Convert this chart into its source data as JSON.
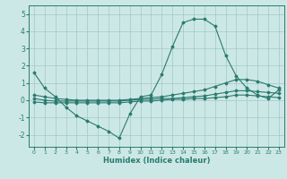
{
  "xlabel": "Humidex (Indice chaleur)",
  "ylabel": "",
  "bg_color": "#cce8e6",
  "grid_color": "#a0c8c6",
  "line_color": "#2a7a6f",
  "xlim": [
    -0.5,
    23.5
  ],
  "ylim": [
    -2.7,
    5.5
  ],
  "xticks": [
    0,
    1,
    2,
    3,
    4,
    5,
    6,
    7,
    8,
    9,
    10,
    11,
    12,
    13,
    14,
    15,
    16,
    17,
    18,
    19,
    20,
    21,
    22,
    23
  ],
  "yticks": [
    -2,
    -1,
    0,
    1,
    2,
    3,
    4,
    5
  ],
  "series": [
    {
      "x": [
        0,
        1,
        2,
        3,
        4,
        5,
        6,
        7,
        8,
        9,
        10,
        11,
        12,
        13,
        14,
        15,
        16,
        17,
        18,
        19,
        20,
        21,
        22,
        23
      ],
      "y": [
        1.6,
        0.7,
        0.2,
        -0.4,
        -0.9,
        -1.2,
        -1.5,
        -1.8,
        -2.2,
        -0.8,
        0.2,
        0.3,
        1.5,
        3.1,
        4.5,
        4.7,
        4.7,
        4.3,
        2.6,
        1.4,
        0.7,
        0.3,
        0.1,
        0.6
      ]
    },
    {
      "x": [
        0,
        1,
        2,
        3,
        4,
        5,
        6,
        7,
        8,
        9,
        10,
        11,
        12,
        13,
        14,
        15,
        16,
        17,
        18,
        19,
        20,
        21,
        22,
        23
      ],
      "y": [
        0.3,
        0.2,
        0.1,
        0.05,
        0.0,
        0.0,
        0.0,
        0.0,
        0.0,
        0.05,
        0.1,
        0.15,
        0.2,
        0.3,
        0.4,
        0.5,
        0.6,
        0.8,
        1.0,
        1.2,
        1.2,
        1.1,
        0.9,
        0.7
      ]
    },
    {
      "x": [
        0,
        1,
        2,
        3,
        4,
        5,
        6,
        7,
        8,
        9,
        10,
        11,
        12,
        13,
        14,
        15,
        16,
        17,
        18,
        19,
        20,
        21,
        22,
        23
      ],
      "y": [
        0.1,
        0.0,
        -0.05,
        -0.05,
        -0.05,
        -0.05,
        -0.05,
        -0.05,
        -0.05,
        0.0,
        0.05,
        0.05,
        0.1,
        0.1,
        0.15,
        0.2,
        0.25,
        0.35,
        0.45,
        0.55,
        0.55,
        0.5,
        0.45,
        0.4
      ]
    },
    {
      "x": [
        0,
        1,
        2,
        3,
        4,
        5,
        6,
        7,
        8,
        9,
        10,
        11,
        12,
        13,
        14,
        15,
        16,
        17,
        18,
        19,
        20,
        21,
        22,
        23
      ],
      "y": [
        -0.1,
        -0.15,
        -0.15,
        -0.15,
        -0.15,
        -0.15,
        -0.15,
        -0.15,
        -0.15,
        -0.1,
        -0.05,
        -0.05,
        0.0,
        0.05,
        0.05,
        0.1,
        0.1,
        0.15,
        0.2,
        0.3,
        0.3,
        0.25,
        0.2,
        0.15
      ]
    }
  ]
}
